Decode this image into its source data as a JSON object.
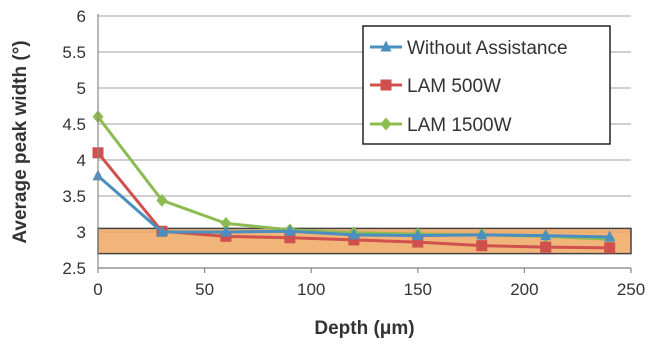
{
  "chart_data": {
    "type": "line",
    "title": "",
    "xlabel": "Depth (μm)",
    "ylabel": "Average peak width (°)",
    "xlim": [
      0,
      250
    ],
    "ylim": [
      2.5,
      6
    ],
    "xticks": [
      0,
      50,
      100,
      150,
      200,
      250
    ],
    "yticks": [
      2.5,
      3,
      3.5,
      4,
      4.5,
      5,
      5.5,
      6
    ],
    "grid": true,
    "legend_position": "top-right",
    "series": [
      {
        "name": "Without Assistance",
        "color": "#4a8fc0",
        "marker": "triangle",
        "x": [
          0,
          30,
          60,
          90,
          120,
          150,
          180,
          210,
          240
        ],
        "y": [
          3.78,
          3.0,
          3.0,
          3.01,
          2.96,
          2.95,
          2.96,
          2.95,
          2.93
        ]
      },
      {
        "name": "LAM 500W",
        "color": "#d0504d",
        "marker": "square",
        "x": [
          0,
          30,
          60,
          90,
          120,
          150,
          180,
          210,
          240
        ],
        "y": [
          4.1,
          3.01,
          2.94,
          2.92,
          2.89,
          2.86,
          2.81,
          2.79,
          2.78
        ]
      },
      {
        "name": "LAM 1500W",
        "color": "#8dbb52",
        "marker": "diamond",
        "x": [
          0,
          30,
          60,
          90,
          120,
          150,
          180,
          210,
          240
        ],
        "y": [
          4.6,
          3.44,
          3.12,
          3.03,
          2.99,
          2.97,
          2.96,
          2.94,
          2.9
        ]
      }
    ],
    "highlight_band": {
      "x": [
        0,
        250
      ],
      "y": [
        2.7,
        3.05
      ],
      "fill": "#f0a862",
      "stroke": "#444444"
    }
  }
}
